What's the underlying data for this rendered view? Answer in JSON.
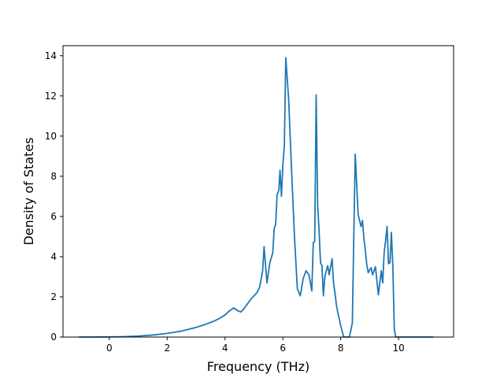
{
  "chart_data": {
    "type": "line",
    "title": "",
    "xlabel": "Frequency (THz)",
    "ylabel": "Density of States",
    "xlim": [
      -1.6,
      11.9
    ],
    "ylim": [
      0,
      14.5
    ],
    "xticks": [
      0,
      2,
      4,
      6,
      8,
      10
    ],
    "yticks": [
      0,
      2,
      4,
      6,
      8,
      10,
      12,
      14
    ],
    "grid": false,
    "legend": "none",
    "color": "#1f77b4",
    "series": [
      {
        "x": [
          -1.05,
          -0.5,
          0,
          0.5,
          1.0,
          1.5,
          2.0,
          2.5,
          3.0,
          3.3,
          3.6,
          3.8,
          4.0,
          4.15,
          4.3,
          4.45,
          4.55,
          4.65,
          4.75,
          4.9,
          5.0,
          5.1,
          5.2,
          5.25,
          5.3,
          5.35,
          5.45,
          5.55,
          5.65,
          5.7,
          5.75,
          5.8,
          5.86,
          5.9,
          5.95,
          6.0,
          6.05,
          6.1,
          6.2,
          6.3,
          6.4,
          6.5,
          6.6,
          6.7,
          6.8,
          6.9,
          7.0,
          7.05,
          7.1,
          7.15,
          7.2,
          7.25,
          7.3,
          7.35,
          7.4,
          7.45,
          7.5,
          7.55,
          7.6,
          7.7,
          7.75,
          7.8,
          7.85,
          7.9,
          7.95,
          8.0,
          8.1,
          8.2,
          8.3,
          8.4,
          8.5,
          8.6,
          8.7,
          8.75,
          8.8,
          8.85,
          8.9,
          8.95,
          9.0,
          9.05,
          9.1,
          9.2,
          9.3,
          9.4,
          9.45,
          9.5,
          9.55,
          9.6,
          9.65,
          9.7,
          9.75,
          9.8,
          9.85,
          9.9,
          9.95,
          10.0,
          10.05,
          10.1,
          10.2,
          10.3,
          10.5,
          11.2
        ],
        "y": [
          0,
          0,
          0.005,
          0.02,
          0.05,
          0.1,
          0.18,
          0.3,
          0.48,
          0.62,
          0.78,
          0.92,
          1.1,
          1.3,
          1.45,
          1.3,
          1.25,
          1.4,
          1.6,
          1.9,
          2.05,
          2.2,
          2.5,
          2.9,
          3.3,
          4.5,
          2.7,
          3.7,
          4.2,
          5.4,
          5.6,
          7.1,
          7.3,
          8.3,
          7.0,
          8.6,
          9.5,
          13.9,
          11.8,
          8.3,
          5.0,
          2.4,
          2.05,
          2.9,
          3.3,
          3.1,
          2.3,
          4.7,
          4.75,
          12.05,
          6.6,
          5.3,
          3.7,
          3.55,
          2.05,
          3.0,
          3.3,
          3.55,
          3.1,
          3.9,
          2.7,
          2.2,
          1.6,
          1.2,
          0.9,
          0.55,
          0,
          0,
          0,
          0.7,
          9.1,
          6.1,
          5.5,
          5.8,
          4.9,
          4.3,
          3.6,
          3.2,
          3.35,
          3.45,
          3.1,
          3.5,
          2.1,
          3.3,
          2.7,
          4.2,
          4.8,
          5.5,
          3.65,
          3.7,
          5.2,
          3.5,
          0.4,
          0,
          0,
          0,
          0,
          0,
          0,
          0,
          0,
          0
        ]
      }
    ]
  }
}
